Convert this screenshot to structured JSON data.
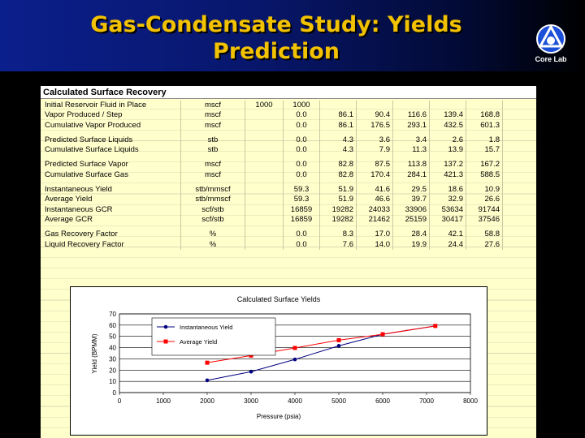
{
  "slide": {
    "title": "Gas-Condensate Study: Yields Prediction",
    "logo_text": "Core Lab"
  },
  "sheet": {
    "title": "Calculated Surface Recovery",
    "rows": [
      {
        "label": "Initial Reservoir Fluid in Place",
        "unit": "mscf",
        "c1": "1000",
        "c2": "1000",
        "v": [
          "",
          "",
          "",
          "",
          "",
          ""
        ]
      },
      {
        "label": "Vapor Produced / Step",
        "unit": "mscf",
        "c1": "",
        "c2": "0.0",
        "v": [
          "86.1",
          "90.4",
          "116.6",
          "139.4",
          "168.8"
        ]
      },
      {
        "label": "Cumulative Vapor Produced",
        "unit": "mscf",
        "c1": "",
        "c2": "0.0",
        "v": [
          "86.1",
          "176.5",
          "293.1",
          "432.5",
          "601.3"
        ]
      },
      {
        "gap": true
      },
      {
        "label": "Predicted Surface Liquids",
        "unit": "stb",
        "c1": "",
        "c2": "0.0",
        "v": [
          "4.3",
          "3.6",
          "3.4",
          "2.6",
          "1.8"
        ]
      },
      {
        "label": "Cumulative Surface Liquids",
        "unit": "stb",
        "c1": "",
        "c2": "0.0",
        "v": [
          "4.3",
          "7.9",
          "11.3",
          "13.9",
          "15.7"
        ]
      },
      {
        "gap": true
      },
      {
        "label": "Predicted Surface Vapor",
        "unit": "mscf",
        "c1": "",
        "c2": "0.0",
        "v": [
          "82.8",
          "87.5",
          "113.8",
          "137.2",
          "167.2"
        ]
      },
      {
        "label": "Cumulative Surface Gas",
        "unit": "mscf",
        "c1": "",
        "c2": "0.0",
        "v": [
          "82.8",
          "170.4",
          "284.1",
          "421.3",
          "588.5"
        ]
      },
      {
        "gap": true
      },
      {
        "label": "Instantaneous Yield",
        "unit": "stb/mmscf",
        "c1": "",
        "c2": "59.3",
        "v": [
          "51.9",
          "41.6",
          "29.5",
          "18.6",
          "10.9"
        ]
      },
      {
        "label": "Average Yield",
        "unit": "stb/mmscf",
        "c1": "",
        "c2": "59.3",
        "v": [
          "51.9",
          "46.6",
          "39.7",
          "32.9",
          "26.6"
        ]
      },
      {
        "label": "Instantaneous GCR",
        "unit": "scf/stb",
        "c1": "",
        "c2": "16859",
        "v": [
          "19282",
          "24033",
          "33906",
          "53634",
          "91744"
        ]
      },
      {
        "label": "Average GCR",
        "unit": "scf/stb",
        "c1": "",
        "c2": "16859",
        "v": [
          "19282",
          "21462",
          "25159",
          "30417",
          "37546"
        ]
      },
      {
        "gap": true
      },
      {
        "label": "Gas Recovery Factor",
        "unit": "%",
        "c1": "",
        "c2": "0.0",
        "v": [
          "8.3",
          "17.0",
          "28.4",
          "42.1",
          "58.8"
        ]
      },
      {
        "label": "Liquid Recovery Factor",
        "unit": "%",
        "c1": "",
        "c2": "0.0",
        "v": [
          "7.6",
          "14.0",
          "19.9",
          "24.4",
          "27.6"
        ]
      }
    ]
  },
  "chart_data": {
    "type": "line",
    "title": "Calculated Surface Yields",
    "xlabel": "Pressure (psia)",
    "ylabel": "Yield (BPMM)",
    "xlim": [
      0,
      8000
    ],
    "ylim": [
      0,
      70
    ],
    "xticks": [
      0,
      1000,
      2000,
      3000,
      4000,
      5000,
      6000,
      7000,
      8000
    ],
    "yticks": [
      0,
      10,
      20,
      30,
      40,
      50,
      60,
      70
    ],
    "grid": true,
    "legend": "top-left",
    "series": [
      {
        "name": "Instantaneous Yield",
        "color": "#000080",
        "marker": "circle",
        "x": [
          2000,
          3000,
          4000,
          5000,
          6000,
          7200
        ],
        "y": [
          10.9,
          18.6,
          29.5,
          41.6,
          51.9,
          59.3
        ]
      },
      {
        "name": "Average Yield",
        "color": "#ff0000",
        "marker": "square",
        "x": [
          2000,
          3000,
          4000,
          5000,
          6000,
          7200
        ],
        "y": [
          26.6,
          32.9,
          39.7,
          46.6,
          51.9,
          59.3
        ]
      }
    ]
  }
}
